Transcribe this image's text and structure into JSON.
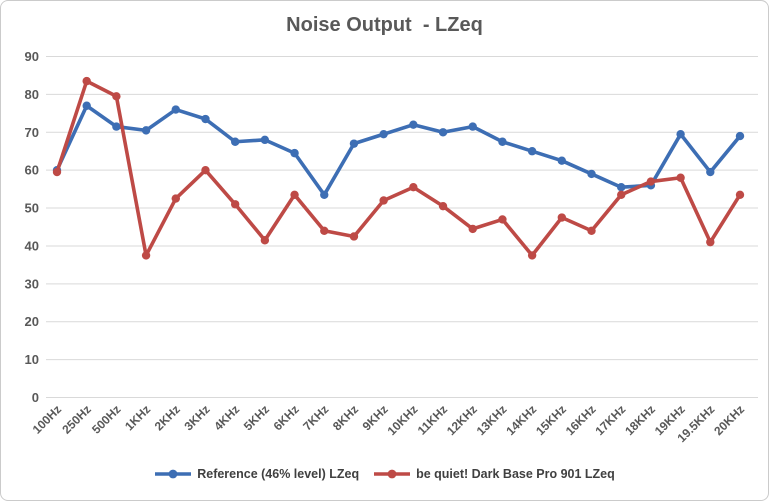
{
  "chart_data": {
    "type": "line",
    "title": "Noise Output  - LZeq",
    "categories": [
      "100Hz",
      "250Hz",
      "500Hz",
      "1KHz",
      "2KHz",
      "3KHz",
      "4KHz",
      "5KHz",
      "6KHz",
      "7KHz",
      "8KHz",
      "9KHz",
      "10KHz",
      "11KHz",
      "12KHz",
      "13KHz",
      "14KHz",
      "15KHz",
      "16KHz",
      "17KHz",
      "18KHz",
      "19KHz",
      "19.5KHz",
      "20KHz"
    ],
    "series": [
      {
        "name": "Reference (46% level) LZeq",
        "color": "#3D6EB4",
        "marker": "circle",
        "values": [
          60,
          77,
          71.5,
          70.5,
          76,
          73.5,
          67.5,
          68,
          64.5,
          53.5,
          67,
          69.5,
          72,
          70,
          71.5,
          67.5,
          65,
          62.5,
          59,
          55.5,
          56,
          69.5,
          59.5,
          69
        ]
      },
      {
        "name": "be quiet! Dark Base Pro 901 LZeq",
        "color": "#BE4A46",
        "marker": "circle",
        "values": [
          59.5,
          83.5,
          79.5,
          37.5,
          52.5,
          60,
          51,
          41.5,
          53.5,
          44,
          42.5,
          52,
          55.5,
          50.5,
          44.5,
          47,
          37.5,
          47.5,
          44,
          53.5,
          57,
          58,
          41,
          53.5
        ]
      }
    ],
    "ylim": [
      0,
      90
    ],
    "y_ticks": [
      0,
      10,
      20,
      30,
      40,
      50,
      60,
      70,
      80,
      90
    ],
    "xlabel": "",
    "ylabel": "",
    "grid": "horizontal-only",
    "legend_position": "bottom",
    "x_tick_rotation_deg": -45,
    "colors": {
      "title_text": "#595959",
      "axis_text": "#595959",
      "legend_text": "#404040",
      "gridline": "#D9D9D9",
      "background": "#FFFFFF",
      "frame_border": "#CBCBCB"
    }
  }
}
